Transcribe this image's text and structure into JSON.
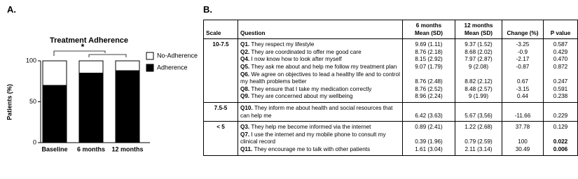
{
  "panel_a_label": "A.",
  "panel_b_label": "B.",
  "chart_data": {
    "type": "stacked_bar",
    "title": "Treatment Adherence",
    "ylabel": "Patients (%)",
    "categories": [
      "Baseline",
      "6 months",
      "12 months"
    ],
    "series": [
      {
        "name": "No-Adherence",
        "color": "#ffffff",
        "values": [
          30,
          15,
          12
        ]
      },
      {
        "name": "Adherence",
        "color": "#000000",
        "values": [
          70,
          85,
          88
        ]
      }
    ],
    "ylim": [
      0,
      100
    ],
    "yticks": [
      0,
      50,
      100
    ],
    "annotation": "*",
    "legend": "right"
  },
  "table": {
    "columns": [
      [
        "Scale"
      ],
      [
        "Question"
      ],
      [
        "6 months",
        "Mean (SD)"
      ],
      [
        "12 months",
        "Mean (SD)"
      ],
      [
        "Change (%)"
      ],
      [
        "P value"
      ]
    ],
    "groups": [
      {
        "scale": "10-7.5",
        "rows": [
          {
            "id": "Q1.",
            "text": "They respect my lifestyle",
            "m6": "9.69 (1.11)",
            "m12": "9.37 (1.52)",
            "change": "-3.25",
            "p": "0.587"
          },
          {
            "id": "Q2.",
            "text": "They are coordinated to offer me good care",
            "m6": "8.76 (2.18)",
            "m12": "8.68 (2.02)",
            "change": "-0.9",
            "p": "0.429"
          },
          {
            "id": "Q4.",
            "text": "I now know how to look after myself",
            "m6": "8.15 (2.92)",
            "m12": "7.97 (2.87)",
            "change": "-2.17",
            "p": "0.470"
          },
          {
            "id": "Q5.",
            "text": "They ask me about and help me follow my treatment plan",
            "m6": "9.07 (1.79)",
            "m12": "9 (2.08)",
            "change": "-0.87",
            "p": "0.872"
          },
          {
            "id": "Q6.",
            "text": "We agree on objectives to lead a healthy life  and to control my health problems better",
            "m6": "8.76 (2.48)",
            "m12": "8.82 (2.12)",
            "change": "0.67",
            "p": "0.247"
          },
          {
            "id": "Q8.",
            "text": "They ensure that I take my medication correctly",
            "m6": "8.76 (2.52)",
            "m12": "8.48 (2.57)",
            "change": "-3.15",
            "p": "0.591"
          },
          {
            "id": "Q9.",
            "text": "They are concerned about my wellbeing",
            "m6": "8.96 (2.24)",
            "m12": "9 (1.99)",
            "change": "0.44",
            "p": "0.238"
          }
        ]
      },
      {
        "scale": "7.5-5",
        "rows": [
          {
            "id": "Q10.",
            "text": "They inform me about health and social resources that can help me",
            "m6": "6.42 (3.63)",
            "m12": "5.67 (3,56)",
            "change": "-11.66",
            "p": "0.229"
          }
        ]
      },
      {
        "scale": "< 5",
        "rows": [
          {
            "id": "Q3.",
            "text": "They help me become informed via the internet",
            "m6": "0.89 (2.41)",
            "m12": "1.22 (2.68)",
            "change": "37.78",
            "p": "0.129"
          },
          {
            "id": "Q7.",
            "text": "I use the internet and my mobile phone to consult my clinical record",
            "m6": "0.39 (1.96)",
            "m12": "0.79 (2.59)",
            "change": "100",
            "p": "0.022",
            "p_bold": true
          },
          {
            "id": "Q11.",
            "text": "They encourage me to talk with other patients",
            "m6": "1.61 (3.04)",
            "m12": "2.11 (3.14)",
            "change": "30.49",
            "p": "0.006",
            "p_bold": true
          }
        ]
      }
    ]
  }
}
